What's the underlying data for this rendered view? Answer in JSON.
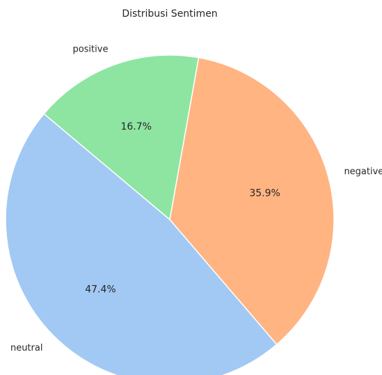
{
  "chart_data": {
    "type": "pie",
    "title": "Distribusi Sentimen",
    "start_angle_deg": 140,
    "direction": "counterclockwise",
    "slices": [
      {
        "label": "neutral",
        "value": 47.4,
        "pct_label": "47.4%",
        "color": "#a1c9f4"
      },
      {
        "label": "negative",
        "value": 35.9,
        "pct_label": "35.9%",
        "color": "#ffb482"
      },
      {
        "label": "positive",
        "value": 16.7,
        "pct_label": "16.7%",
        "color": "#8de5a1"
      }
    ],
    "legend": "none"
  }
}
